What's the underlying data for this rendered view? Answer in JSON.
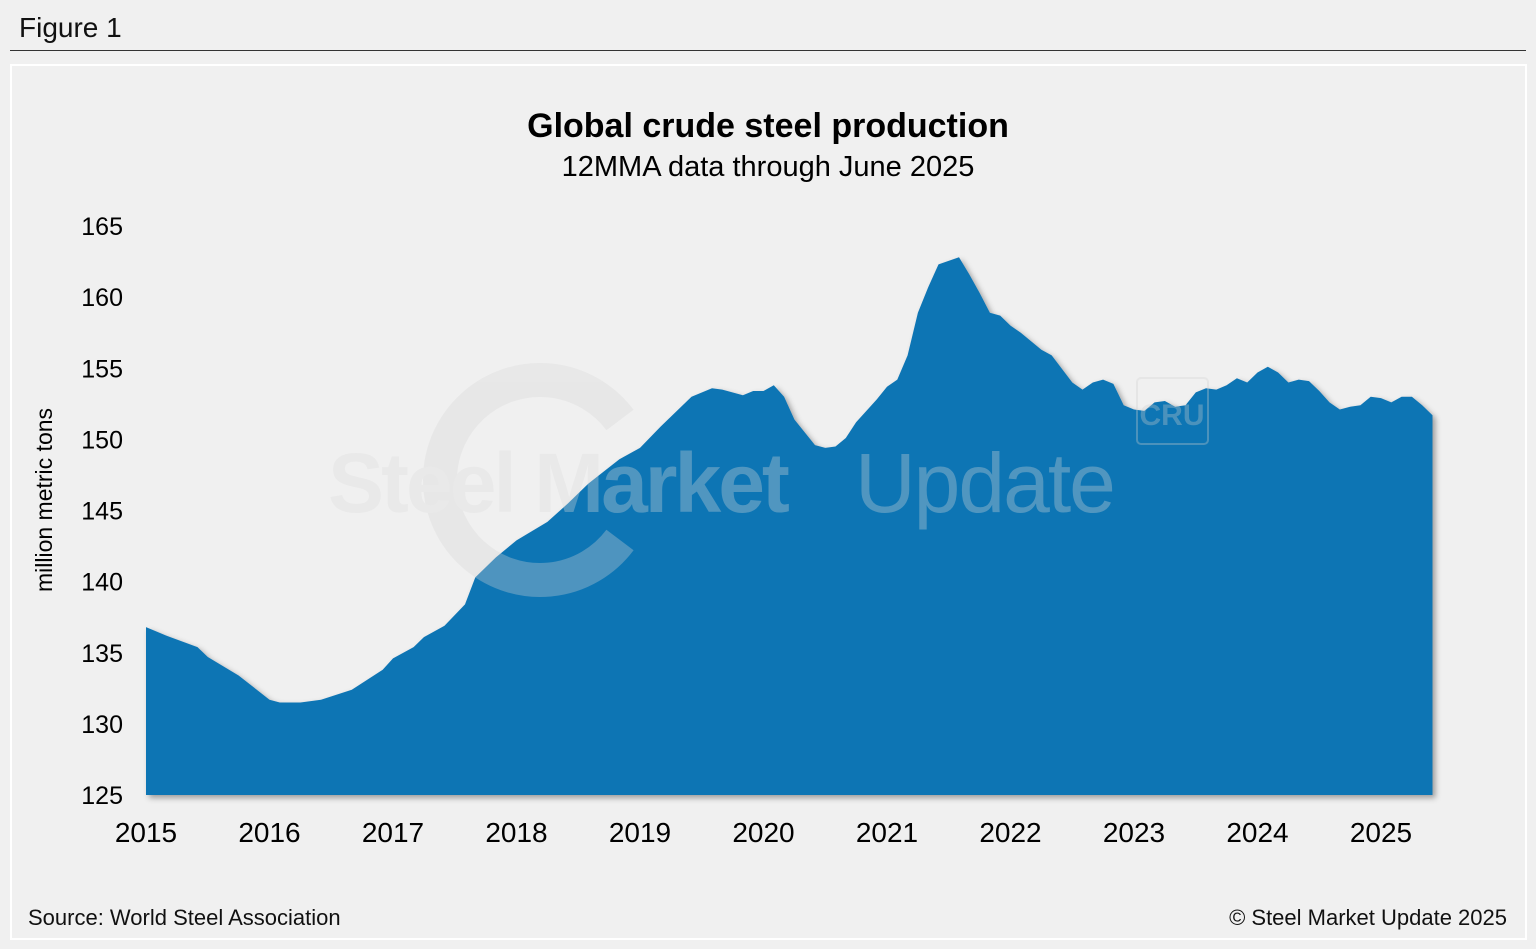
{
  "figure_label": "Figure 1",
  "source": "Source: World Steel Association",
  "copyright": "© Steel Market Update 2025",
  "watermark": "Steel Market Update",
  "watermark_badge": "CRU",
  "colors": {
    "fill": "#1174b4",
    "background": "#efefef"
  },
  "chart_data": {
    "type": "area",
    "title": "Global crude steel production",
    "subtitle": "12MMA data through June 2025",
    "xlabel": "",
    "ylabel": "million metric tons",
    "ylim": [
      125,
      165
    ],
    "yticks": [
      "125",
      "130",
      "135",
      "140",
      "145",
      "150",
      "155",
      "160",
      "165"
    ],
    "xticks": [
      "2015",
      "2016",
      "2017",
      "2018",
      "2019",
      "2020",
      "2021",
      "2022",
      "2023",
      "2024",
      "2025"
    ],
    "grid": false,
    "points": [
      [
        "2015-01",
        136.8
      ],
      [
        "2015-03",
        136.2
      ],
      [
        "2015-06",
        135.4
      ],
      [
        "2015-07",
        134.7
      ],
      [
        "2015-10",
        133.4
      ],
      [
        "2016-01",
        131.7
      ],
      [
        "2016-02",
        131.5
      ],
      [
        "2016-04",
        131.5
      ],
      [
        "2016-06",
        131.7
      ],
      [
        "2016-09",
        132.4
      ],
      [
        "2016-12",
        133.8
      ],
      [
        "2017-01",
        134.6
      ],
      [
        "2017-03",
        135.4
      ],
      [
        "2017-04",
        136.1
      ],
      [
        "2017-06",
        136.9
      ],
      [
        "2017-08",
        138.4
      ],
      [
        "2017-09",
        140.3
      ],
      [
        "2017-11",
        141.7
      ],
      [
        "2018-01",
        142.9
      ],
      [
        "2018-04",
        144.2
      ],
      [
        "2018-06",
        145.5
      ],
      [
        "2018-08",
        146.9
      ],
      [
        "2018-11",
        148.6
      ],
      [
        "2019-01",
        149.4
      ],
      [
        "2019-03",
        150.9
      ],
      [
        "2019-06",
        153.0
      ],
      [
        "2019-08",
        153.6
      ],
      [
        "2019-09",
        153.5
      ],
      [
        "2019-11",
        153.1
      ],
      [
        "2019-12",
        153.4
      ],
      [
        "2020-01",
        153.4
      ],
      [
        "2020-02",
        153.8
      ],
      [
        "2020-03",
        153.0
      ],
      [
        "2020-04",
        151.4
      ],
      [
        "2020-06",
        149.6
      ],
      [
        "2020-07",
        149.4
      ],
      [
        "2020-08",
        149.5
      ],
      [
        "2020-09",
        150.1
      ],
      [
        "2020-10",
        151.2
      ],
      [
        "2020-12",
        152.8
      ],
      [
        "2021-01",
        153.7
      ],
      [
        "2021-02",
        154.2
      ],
      [
        "2021-03",
        155.9
      ],
      [
        "2021-04",
        158.9
      ],
      [
        "2021-05",
        160.7
      ],
      [
        "2021-06",
        162.3
      ],
      [
        "2021-08",
        162.8
      ],
      [
        "2021-09",
        161.6
      ],
      [
        "2021-10",
        160.3
      ],
      [
        "2021-11",
        158.9
      ],
      [
        "2021-12",
        158.7
      ],
      [
        "2022-01",
        158.0
      ],
      [
        "2022-02",
        157.5
      ],
      [
        "2022-04",
        156.3
      ],
      [
        "2022-05",
        155.9
      ],
      [
        "2022-07",
        154.0
      ],
      [
        "2022-08",
        153.5
      ],
      [
        "2022-09",
        154.0
      ],
      [
        "2022-10",
        154.2
      ],
      [
        "2022-11",
        153.9
      ],
      [
        "2022-12",
        152.4
      ],
      [
        "2023-01",
        152.1
      ],
      [
        "2023-02",
        152.0
      ],
      [
        "2023-03",
        152.6
      ],
      [
        "2023-04",
        152.7
      ],
      [
        "2023-05",
        152.3
      ],
      [
        "2023-06",
        152.4
      ],
      [
        "2023-07",
        153.3
      ],
      [
        "2023-08",
        153.6
      ],
      [
        "2023-09",
        153.5
      ],
      [
        "2023-10",
        153.8
      ],
      [
        "2023-11",
        154.3
      ],
      [
        "2023-12",
        154.0
      ],
      [
        "2024-01",
        154.7
      ],
      [
        "2024-02",
        155.1
      ],
      [
        "2024-03",
        154.7
      ],
      [
        "2024-04",
        154.0
      ],
      [
        "2024-05",
        154.2
      ],
      [
        "2024-06",
        154.1
      ],
      [
        "2024-07",
        153.4
      ],
      [
        "2024-08",
        152.6
      ],
      [
        "2024-09",
        152.1
      ],
      [
        "2024-10",
        152.3
      ],
      [
        "2024-11",
        152.4
      ],
      [
        "2024-12",
        153.0
      ],
      [
        "2025-01",
        152.9
      ],
      [
        "2025-02",
        152.6
      ],
      [
        "2025-03",
        153.0
      ],
      [
        "2025-04",
        153.0
      ],
      [
        "2025-05",
        152.4
      ],
      [
        "2025-06",
        151.7
      ]
    ]
  }
}
